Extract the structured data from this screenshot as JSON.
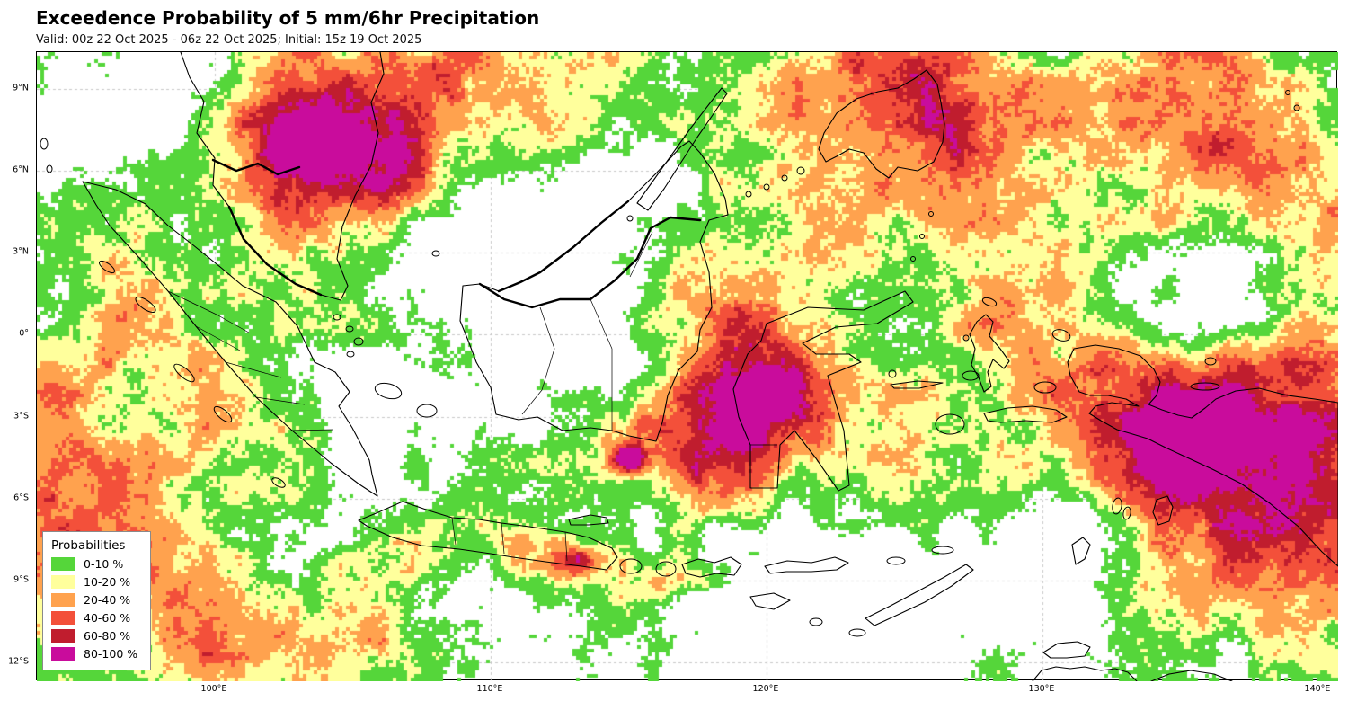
{
  "header": {
    "title": "Exceedence Probability of 5 mm/6hr Precipitation",
    "subtitle": "Valid: 00z 22 Oct 2025 - 06z 22 Oct 2025; Initial: 15z 19 Oct 2025"
  },
  "map": {
    "x_ticks": [
      "100°E",
      "110°E",
      "120°E",
      "130°E",
      "140°E"
    ],
    "y_ticks": [
      "9°N",
      "6°N",
      "3°N",
      "0°",
      "3°S",
      "6°S",
      "9°S",
      "12°S"
    ]
  },
  "legend": {
    "title": "Probabilities",
    "entries": [
      {
        "label": "0-10 %",
        "color": "#55d63a"
      },
      {
        "label": "10-20 %",
        "color": "#ffff9c"
      },
      {
        "label": "20-40 %",
        "color": "#ffa24e"
      },
      {
        "label": "40-60 %",
        "color": "#f3503a"
      },
      {
        "label": "60-80 %",
        "color": "#c01d2e"
      },
      {
        "label": "80-100 %",
        "color": "#c90c9c"
      }
    ]
  },
  "colors": {
    "background": "#ffffff",
    "coastline": "#000000",
    "grid": "#c8c8c8"
  }
}
